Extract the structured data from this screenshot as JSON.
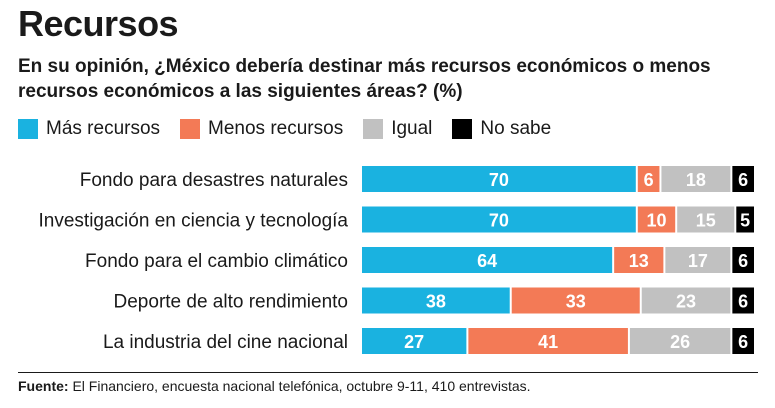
{
  "header": {
    "title": "Recursos",
    "subtitle": "En su opinión, ¿México debería destinar más recursos económicos o menos recursos económicos a las siguientes áreas? (%)"
  },
  "footer": {
    "source_label": "Fuente:",
    "source_text": " El Financiero, encuesta nacional telefónica, octubre 9-11, 410 entrevistas."
  },
  "chart_data": {
    "type": "bar",
    "orientation": "horizontal",
    "stacked": true,
    "title": "Recursos",
    "categories": [
      "Fondo para desastres naturales",
      "Investigación en ciencia y tecnología",
      "Fondo para el cambio climático",
      "Deporte de alto rendimiento",
      "La industria del cine nacional"
    ],
    "series": [
      {
        "name": "Más recursos",
        "color": "#1ab2e0",
        "values": [
          70,
          70,
          64,
          38,
          27
        ]
      },
      {
        "name": "Menos recursos",
        "color": "#f37a56",
        "values": [
          6,
          10,
          13,
          33,
          41
        ]
      },
      {
        "name": "Igual",
        "color": "#c1c1c1",
        "values": [
          18,
          15,
          17,
          23,
          26
        ]
      },
      {
        "name": "No sabe",
        "color": "#000000",
        "values": [
          6,
          5,
          6,
          6,
          6
        ]
      }
    ],
    "legend_position": "top-left",
    "grid": false
  }
}
